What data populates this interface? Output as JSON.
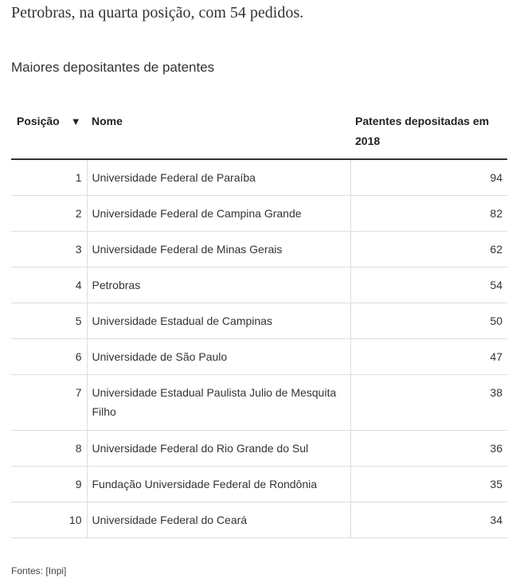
{
  "paragraph": "Petrobras, na quarta posição, com 54 pedidos.",
  "table_title": "Maiores depositantes de patentes",
  "columns": {
    "position": "Posição",
    "name": "Nome",
    "patents": "Patentes depositadas em 2018",
    "sort_icon": "triangle-down"
  },
  "rows": [
    {
      "pos": "1",
      "name": "Universidade Federal de Paraíba",
      "value": "94"
    },
    {
      "pos": "2",
      "name": "Universidade Federal de Campina Grande",
      "value": "82"
    },
    {
      "pos": "3",
      "name": "Universidade Federal de Minas Gerais",
      "value": "62"
    },
    {
      "pos": "4",
      "name": "Petrobras",
      "value": "54"
    },
    {
      "pos": "5",
      "name": "Universidade Estadual de Campinas",
      "value": "50"
    },
    {
      "pos": "6",
      "name": "Universidade de São Paulo",
      "value": "47"
    },
    {
      "pos": "7",
      "name": "Universidade Estadual Paulista Julio de Mesquita Filho",
      "value": "38"
    },
    {
      "pos": "8",
      "name": "Universidade Federal do Rio Grande do Sul",
      "value": "36"
    },
    {
      "pos": "9",
      "name": "Fundação Universidade Federal de Rondônia",
      "value": "35"
    },
    {
      "pos": "10",
      "name": "Universidade Federal do Ceará",
      "value": "34"
    }
  ],
  "source": "Fontes: [Inpi]"
}
